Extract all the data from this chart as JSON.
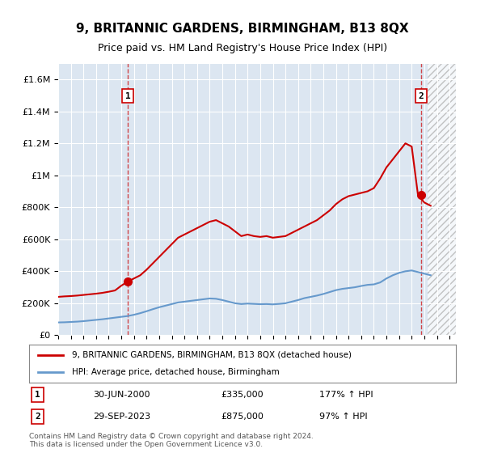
{
  "title": "9, BRITANNIC GARDENS, BIRMINGHAM, B13 8QX",
  "subtitle": "Price paid vs. HM Land Registry's House Price Index (HPI)",
  "hpi_label": "HPI: Average price, detached house, Birmingham",
  "property_label": "9, BRITANNIC GARDENS, BIRMINGHAM, B13 8QX (detached house)",
  "footnote": "Contains HM Land Registry data © Crown copyright and database right 2024.\nThis data is licensed under the Open Government Licence v3.0.",
  "sale1_date": "30-JUN-2000",
  "sale1_price": "£335,000",
  "sale1_hpi": "177% ↑ HPI",
  "sale2_date": "29-SEP-2023",
  "sale2_price": "£875,000",
  "sale2_hpi": "97% ↑ HPI",
  "sale1_x": 2000.5,
  "sale1_y": 335000,
  "sale2_x": 2023.75,
  "sale2_y": 875000,
  "property_color": "#cc0000",
  "hpi_color": "#6699cc",
  "background_color": "#dce6f1",
  "plot_bg_color": "#dce6f1",
  "hatch_color": "#c0c0c0",
  "ylim": [
    0,
    1700000
  ],
  "xlim": [
    1995,
    2026.5
  ],
  "yticks": [
    0,
    200000,
    400000,
    600000,
    800000,
    1000000,
    1200000,
    1400000,
    1600000
  ],
  "ytick_labels": [
    "£0",
    "£200K",
    "£400K",
    "£600K",
    "£800K",
    "£1M",
    "£1.2M",
    "£1.4M",
    "£1.6M"
  ]
}
